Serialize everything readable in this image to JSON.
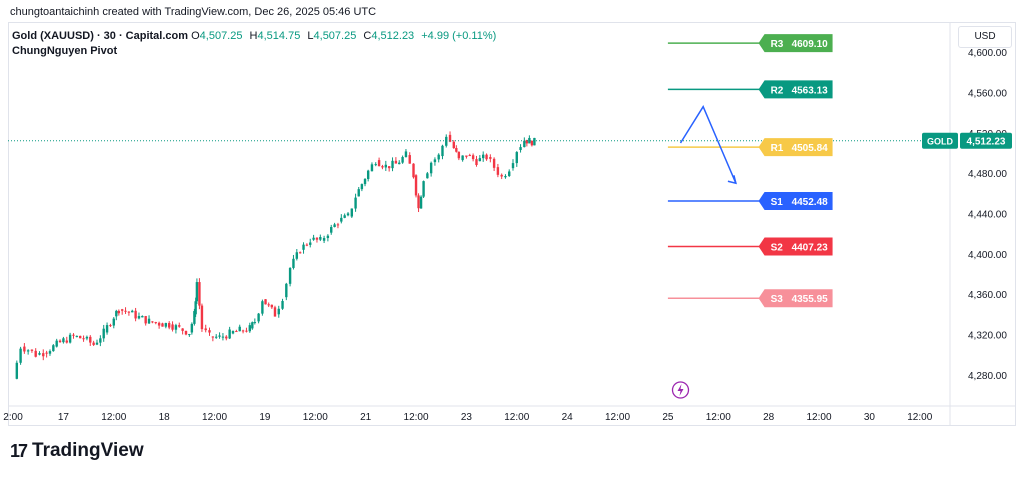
{
  "header": {
    "attribution": "chungtoantaichinh created with TradingView.com, Dec 26, 2025 05:46 UTC"
  },
  "legend": {
    "symbol": "Gold (XAUUSD) · 30 · Capital.com",
    "open_label": "O",
    "open": "4,507.25",
    "high_label": "H",
    "high": "4,514.75",
    "low_label": "L",
    "low": "4,507.25",
    "close_label": "C",
    "close": "4,512.23",
    "change": "+4.99 (+0.11%)",
    "indicator": "ChungNguyen Pivot"
  },
  "currency_button": "USD",
  "footer": {
    "logo_text": "TradingView",
    "logo_mark": "17"
  },
  "colors": {
    "up": "#089981",
    "down": "#f23645",
    "r3": "#4caf50",
    "r2": "#089981",
    "r1": "#f7c948",
    "s1": "#2962ff",
    "s2": "#f23645",
    "s3": "#f7909a",
    "projection": "#2962ff",
    "price_tag": "#089981"
  },
  "chart_data": {
    "type": "candlestick",
    "title": "Gold (XAUUSD) · 30 · Capital.com",
    "ylim": [
      4255,
      4630
    ],
    "y_ticks": [
      "4,280.00",
      "4,320.00",
      "4,360.00",
      "4,400.00",
      "4,440.00",
      "4,480.00",
      "4,520.00",
      "4,560.00",
      "4,600.00"
    ],
    "y_tick_values": [
      4280,
      4320,
      4360,
      4400,
      4440,
      4480,
      4520,
      4560,
      4600
    ],
    "x_ticks": [
      "2:00",
      "17",
      "12:00",
      "18",
      "12:00",
      "19",
      "12:00",
      "21",
      "12:00",
      "23",
      "12:00",
      "24",
      "12:00",
      "25",
      "12:00",
      "28",
      "12:00",
      "30",
      "12:00"
    ],
    "x_tick_units": [
      -1,
      0,
      1,
      2,
      3,
      4,
      5,
      6,
      7,
      8,
      9,
      10,
      11,
      12,
      13,
      14,
      15,
      16,
      17
    ],
    "xlim": [
      -1.1,
      17.6
    ],
    "current_price": {
      "label": "GOLD",
      "value": "4,512.23",
      "y": 4512.23
    },
    "pivot_levels": [
      {
        "name": "R3",
        "label": "R3",
        "value": "4609.10",
        "y": 4609.1,
        "color_key": "r3"
      },
      {
        "name": "R2",
        "label": "R2",
        "value": "4563.13",
        "y": 4563.13,
        "color_key": "r2"
      },
      {
        "name": "R1",
        "label": "R1",
        "value": "4505.84",
        "y": 4505.84,
        "color_key": "r1"
      },
      {
        "name": "S1",
        "label": "S1",
        "value": "4452.48",
        "y": 4452.48,
        "color_key": "s1"
      },
      {
        "name": "S2",
        "label": "S2",
        "value": "4407.23",
        "y": 4407.23,
        "color_key": "s2"
      },
      {
        "name": "S3",
        "label": "S3",
        "value": "4355.95",
        "y": 4355.95,
        "color_key": "s3"
      }
    ],
    "pivot_x_range": [
      12.0,
      13.8
    ],
    "projection_path": [
      [
        12.25,
        4510
      ],
      [
        12.7,
        4546
      ],
      [
        13.05,
        4505
      ],
      [
        13.35,
        4470
      ]
    ],
    "price_path": [
      [
        -1.0,
        4276
      ],
      [
        -0.85,
        4308
      ],
      [
        -0.7,
        4305
      ],
      [
        -0.55,
        4300
      ],
      [
        -0.4,
        4302
      ],
      [
        -0.2,
        4308
      ],
      [
        0.0,
        4314
      ],
      [
        0.2,
        4318
      ],
      [
        0.4,
        4316
      ],
      [
        0.6,
        4310
      ],
      [
        0.8,
        4322
      ],
      [
        1.0,
        4338
      ],
      [
        1.1,
        4345
      ],
      [
        1.3,
        4342
      ],
      [
        1.5,
        4337
      ],
      [
        1.7,
        4333
      ],
      [
        1.9,
        4331
      ],
      [
        2.1,
        4330
      ],
      [
        2.3,
        4326
      ],
      [
        2.5,
        4322
      ],
      [
        2.6,
        4340
      ],
      [
        2.65,
        4372
      ],
      [
        2.75,
        4326
      ],
      [
        2.9,
        4318
      ],
      [
        3.1,
        4317
      ],
      [
        3.3,
        4321
      ],
      [
        3.5,
        4324
      ],
      [
        3.7,
        4326
      ],
      [
        3.8,
        4333
      ],
      [
        3.95,
        4355
      ],
      [
        4.2,
        4340
      ],
      [
        4.35,
        4357
      ],
      [
        4.5,
        4386
      ],
      [
        4.7,
        4404
      ],
      [
        4.9,
        4414
      ],
      [
        5.1,
        4413
      ],
      [
        5.25,
        4421
      ],
      [
        5.45,
        4432
      ],
      [
        5.65,
        4437
      ],
      [
        5.8,
        4457
      ],
      [
        6.05,
        4482
      ],
      [
        6.2,
        4493
      ],
      [
        6.4,
        4487
      ],
      [
        6.6,
        4489
      ],
      [
        6.8,
        4498
      ],
      [
        6.95,
        4478
      ],
      [
        7.05,
        4445
      ],
      [
        7.15,
        4475
      ],
      [
        7.3,
        4491
      ],
      [
        7.45,
        4497
      ],
      [
        7.6,
        4518
      ],
      [
        7.75,
        4505
      ],
      [
        7.85,
        4493
      ],
      [
        8.0,
        4498
      ],
      [
        8.2,
        4492
      ],
      [
        8.4,
        4496
      ],
      [
        8.55,
        4486
      ],
      [
        8.7,
        4476
      ],
      [
        8.85,
        4485
      ],
      [
        9.0,
        4503
      ],
      [
        9.15,
        4513
      ],
      [
        9.25,
        4512
      ],
      [
        9.35,
        4511
      ]
    ],
    "note": "Pivot price axis with 30-minute candles; price path points are approximate (x in day-index units on the time axis)."
  }
}
